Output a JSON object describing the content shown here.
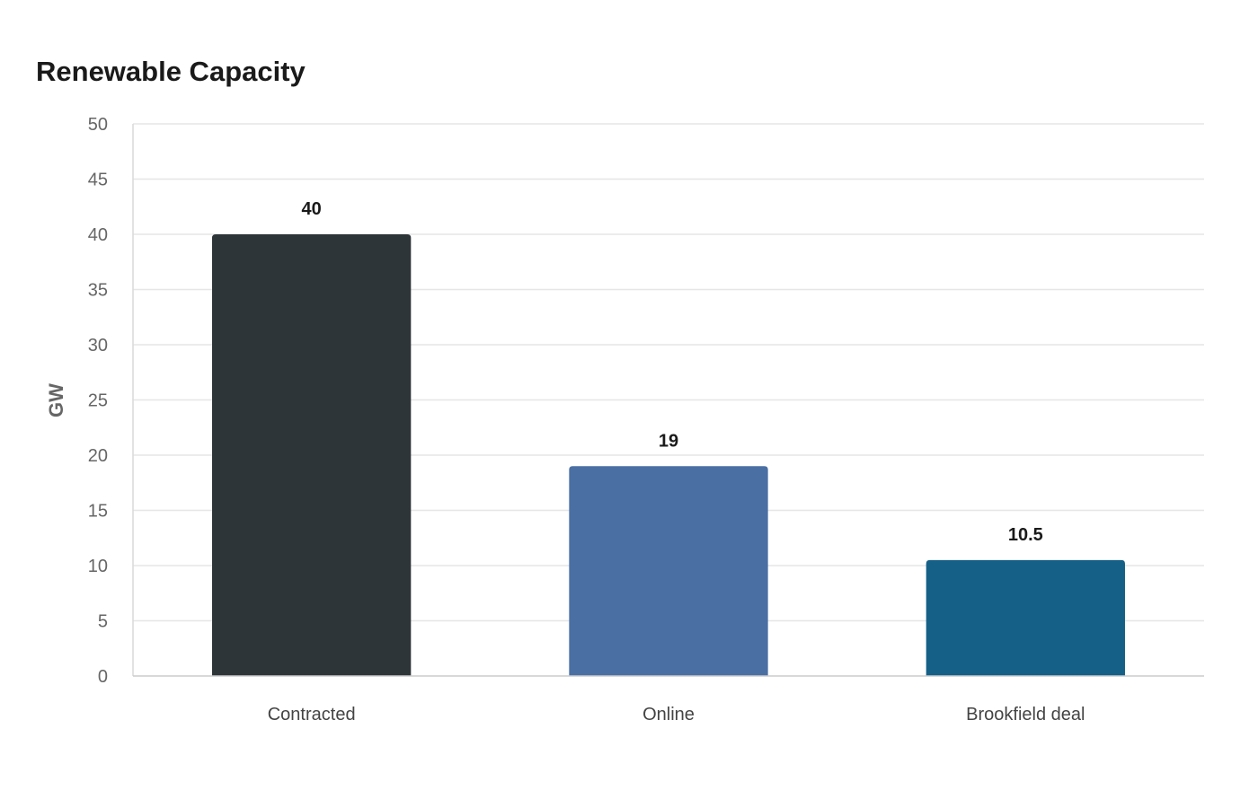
{
  "chart_data": {
    "type": "bar",
    "title": "Renewable Capacity",
    "xlabel": "",
    "ylabel": "GW",
    "categories": [
      "Contracted",
      "Online",
      "Brookfield deal"
    ],
    "values": [
      40,
      19,
      10.5
    ],
    "value_labels": [
      "40",
      "19",
      "10.5"
    ],
    "ylim": [
      0,
      50
    ],
    "yticks": [
      0,
      5,
      10,
      15,
      20,
      25,
      30,
      35,
      40,
      45,
      50
    ],
    "colors": [
      "#2e3538",
      "#4a6fa3",
      "#156087"
    ],
    "grid": true,
    "legend": "none"
  }
}
